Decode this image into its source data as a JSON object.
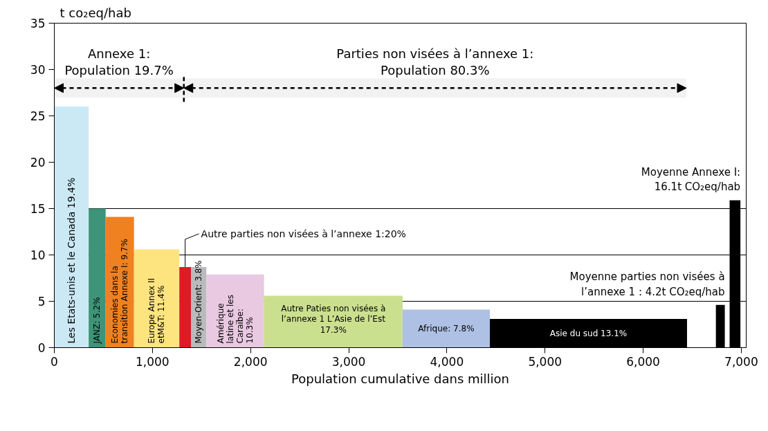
{
  "chart_data": {
    "type": "histogram",
    "ylabel": "t co₂eq/hab",
    "xlabel": "Population cumulative dans million",
    "bins": [
      0,
      350,
      523,
      812,
      1274,
      1393,
      1549,
      2137,
      3549,
      4438,
      6447,
      6741,
      6832,
      6881,
      6991
    ],
    "values": [
      26,
      15,
      14.1,
      10.6,
      8.7,
      8.7,
      7.9,
      5.6,
      4.1,
      3.1,
      null,
      4.6,
      null,
      15.9
    ],
    "colors": [
      "#cbe9f5",
      "#3e9478",
      "#ef8120",
      "#fde47f",
      "#de1b24",
      "#b9babc",
      "#e9c8e1",
      "#cae08e",
      "#aec0e3",
      "#000000",
      null,
      "#000000",
      null,
      "#000000"
    ],
    "xlim": [
      0,
      7050
    ],
    "ylim": [
      0,
      35
    ],
    "xticks": [
      0,
      {
        "value": 1000,
        "label": "1,000"
      },
      {
        "value": 2000,
        "label": "2,000"
      },
      {
        "value": 3000,
        "label": "3,000"
      },
      {
        "value": 4000,
        "label": "4,000"
      },
      {
        "value": 5000,
        "label": "5,000"
      },
      {
        "value": 6000,
        "label": "6,000"
      },
      {
        "value": 7000,
        "label": "7,000"
      }
    ],
    "yticks": [
      0,
      5,
      10,
      15,
      20,
      25,
      30,
      35
    ],
    "grid": false,
    "ref_lines": [
      {
        "axis": "y",
        "value": 5,
        "color": "#000000"
      },
      {
        "axis": "y",
        "value": 10,
        "color": "#000000"
      },
      {
        "axis": "y",
        "value": 15,
        "color": "#000000"
      }
    ],
    "bands": [
      {
        "axis": "x",
        "from": 0,
        "to": 1320,
        "label": "Annexe 1:\nPopulation 19.7%"
      },
      {
        "axis": "x",
        "from": 1320,
        "to": 6440,
        "label": "Parties non visées à l’annexe 1:\nPopulation 80.3%"
      }
    ],
    "annotations": [
      "Les Etats-unis et le Canada 19.4%",
      "JANZ: 5.2%",
      "Economies dans la\ntransition Annexe I: 9.7%",
      "Europe Annex II\netM&T: 11.4%",
      {
        "text": "Autre parties non visées à l’annexe 1:20%",
        "x": 1333,
        "y": 8.7
      },
      "Moyen-Orient: 3.8%",
      "Amérique\nlatine et les\nCaraïbe:\n10.3%",
      "Autre Paties non visées à\nl’annexe 1 L’Asie de l’Est\n17.3%",
      "Afrique: 7.8%",
      "Asie du sud 13.1%",
      {
        "text": "Moyenne parties non visées à\nl’annexe 1 : 4.2t CO₂eq/hab",
        "x": 6786,
        "y": 4.6
      },
      {
        "text": "Moyenne Annexe I:\n16.1t CO₂eq/hab",
        "x": 6936,
        "y": 15.9
      }
    ]
  }
}
